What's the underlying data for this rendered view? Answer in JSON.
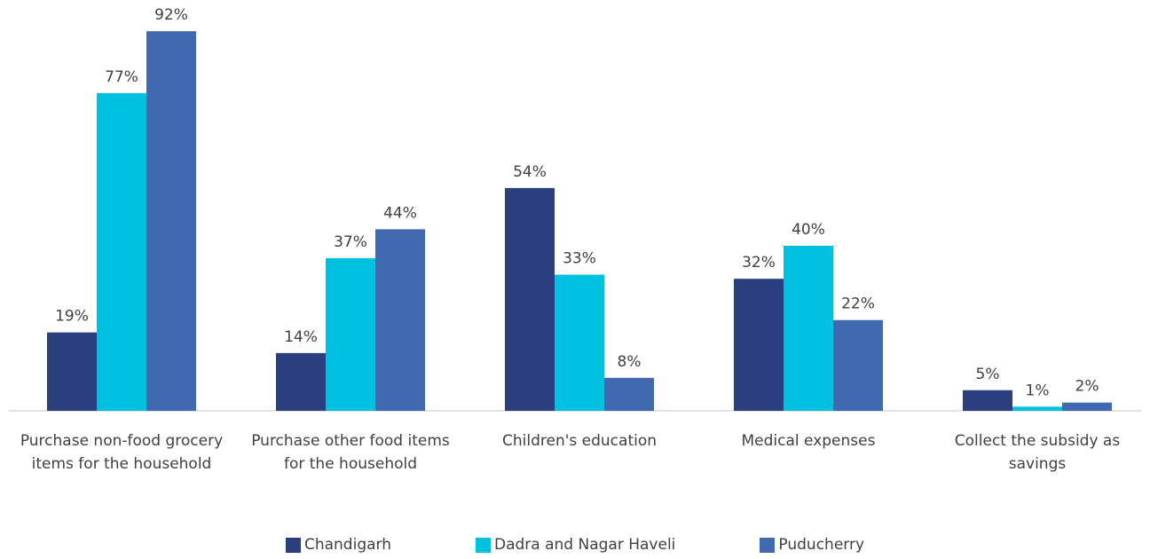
{
  "chart_data": {
    "type": "bar",
    "categories": [
      "Purchase non-food grocery items for the household",
      "Purchase other food items for the household",
      "Children's education",
      "Medical expenses",
      "Collect the subsidy as savings"
    ],
    "series": [
      {
        "name": "Chandigarh",
        "color": "#2b3f7e",
        "values": [
          19,
          14,
          54,
          32,
          5
        ],
        "value_labels": [
          "19%",
          "14%",
          "54%",
          "32%",
          "5%"
        ]
      },
      {
        "name": "Dadra and Nagar Haveli",
        "color": "#00c0e0",
        "values": [
          77,
          37,
          33,
          40,
          1
        ],
        "value_labels": [
          "77%",
          "37%",
          "33%",
          "40%",
          "1%"
        ]
      },
      {
        "name": "Puducherry",
        "color": "#4169b0",
        "values": [
          92,
          44,
          8,
          22,
          2
        ],
        "value_labels": [
          "92%",
          "44%",
          "8%",
          "22%",
          "2%"
        ]
      }
    ],
    "legend": "bottom"
  }
}
